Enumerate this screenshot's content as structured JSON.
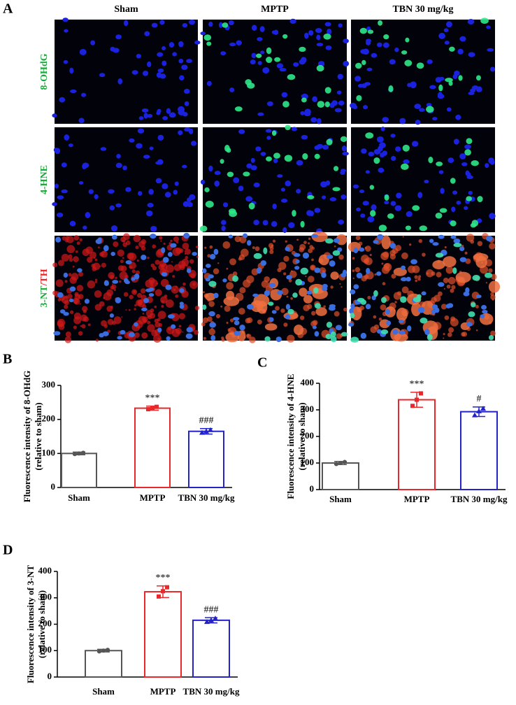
{
  "panel_a": {
    "label": "A",
    "columns": [
      "Sham",
      "MPTP",
      "TBN 30 mg/kg"
    ],
    "rows": [
      [
        "8-OHdG"
      ],
      [
        "4-HNE"
      ],
      [
        "3-NT",
        "/TH"
      ]
    ]
  },
  "chart_data": [
    {
      "label": "B",
      "type": "bar",
      "ylabel": [
        "Fluorescence intensity of 8-OHdG",
        "(relative to sham)"
      ],
      "categories": [
        "Sham",
        "MPTP",
        "TBN 30 mg/kg"
      ],
      "values": [
        100,
        233,
        165
      ],
      "errors": [
        4,
        6,
        8
      ],
      "points": [
        [
          98,
          100,
          102
        ],
        [
          230,
          233,
          237
        ],
        [
          161,
          165,
          169
        ]
      ],
      "annotations": [
        null,
        "***",
        "###"
      ],
      "colors": [
        "#555555",
        "#e8282b",
        "#2323c8"
      ],
      "ylim": [
        0,
        300
      ],
      "yticks": [
        0,
        100,
        200,
        300
      ]
    },
    {
      "label": "C",
      "type": "bar",
      "ylabel": [
        "Fluorescence intensity of 4-HNE",
        "(relative to sham)"
      ],
      "categories": [
        "Sham",
        "MPTP",
        "TBN 30 mg/kg"
      ],
      "values": [
        100,
        338,
        293
      ],
      "errors": [
        6,
        28,
        18
      ],
      "points": [
        [
          96,
          100,
          104
        ],
        [
          315,
          338,
          362
        ],
        [
          280,
          295,
          305
        ]
      ],
      "annotations": [
        null,
        "***",
        "#"
      ],
      "colors": [
        "#555555",
        "#e8282b",
        "#2323c8"
      ],
      "ylim": [
        0,
        400
      ],
      "yticks": [
        0,
        100,
        200,
        300,
        400
      ]
    },
    {
      "label": "D",
      "type": "bar",
      "ylabel": [
        "Fluorescence intensity of 3-NT",
        "(relative to sham)"
      ],
      "categories": [
        "Sham",
        "MPTP",
        "TBN 30 mg/kg"
      ],
      "values": [
        100,
        323,
        215
      ],
      "errors": [
        5,
        22,
        10
      ],
      "points": [
        [
          97,
          100,
          103
        ],
        [
          305,
          325,
          340
        ],
        [
          209,
          215,
          222
        ]
      ],
      "annotations": [
        null,
        "***",
        "###"
      ],
      "colors": [
        "#555555",
        "#e8282b",
        "#2323c8"
      ],
      "ylim": [
        0,
        400
      ],
      "yticks": [
        0,
        100,
        200,
        300,
        400
      ]
    }
  ]
}
